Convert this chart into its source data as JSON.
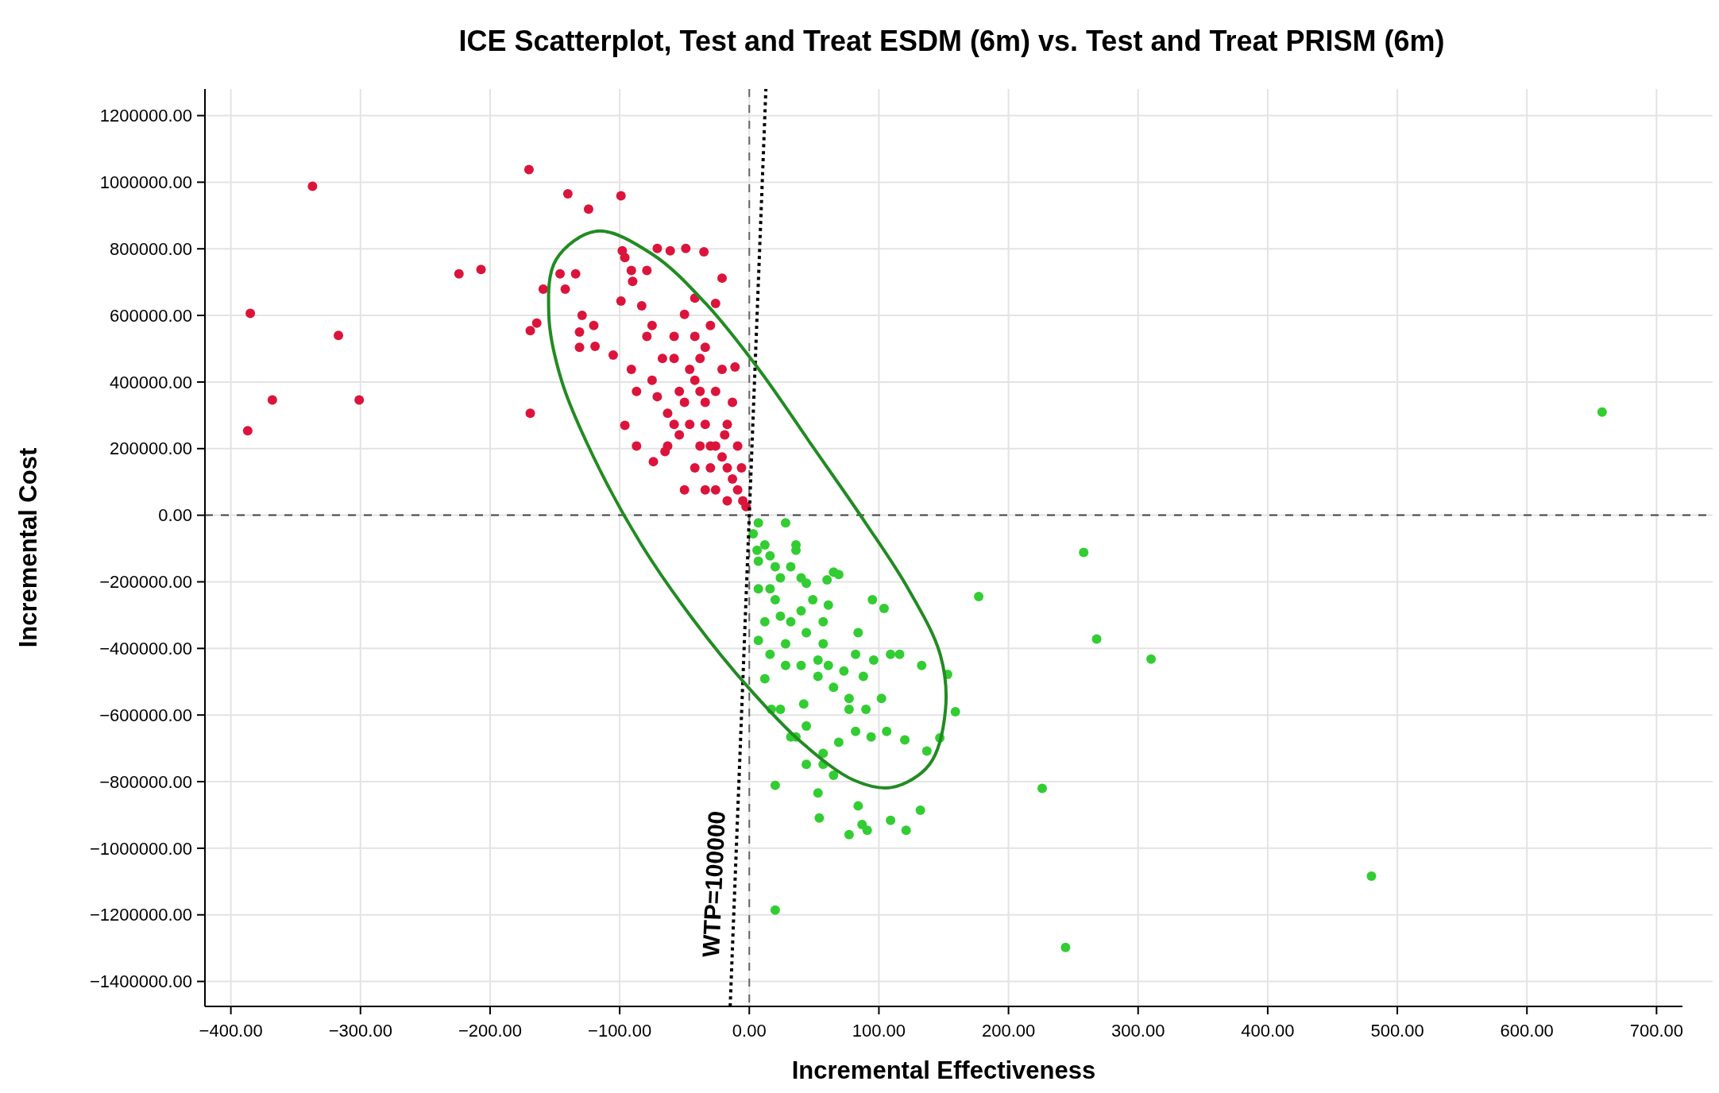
{
  "chart_data": {
    "type": "scatter",
    "title": "ICE Scatterplot, Test and Treat ESDM (6m) vs. Test and Treat PRISM (6m)",
    "xlabel": "Incremental Effectiveness",
    "ylabel": "Incremental Cost",
    "xlim": [
      -420,
      720
    ],
    "ylim": [
      -1475000,
      1280000
    ],
    "xticks": [
      {
        "value": -400,
        "label": "−400.00"
      },
      {
        "value": -300,
        "label": "−300.00"
      },
      {
        "value": -200,
        "label": "−200.00"
      },
      {
        "value": -100,
        "label": "−100.00"
      },
      {
        "value": 0,
        "label": "0.00"
      },
      {
        "value": 100,
        "label": "100.00"
      },
      {
        "value": 200,
        "label": "200.00"
      },
      {
        "value": 300,
        "label": "300.00"
      },
      {
        "value": 400,
        "label": "400.00"
      },
      {
        "value": 500,
        "label": "500.00"
      },
      {
        "value": 600,
        "label": "600.00"
      },
      {
        "value": 700,
        "label": "700.00"
      }
    ],
    "yticks": [
      {
        "value": -1400000,
        "label": "−1400000.00"
      },
      {
        "value": -1200000,
        "label": "−1200000.00"
      },
      {
        "value": -1000000,
        "label": "−1000000.00"
      },
      {
        "value": -800000,
        "label": "−800000.00"
      },
      {
        "value": -600000,
        "label": "−600000.00"
      },
      {
        "value": -400000,
        "label": "−400000.00"
      },
      {
        "value": -200000,
        "label": "−200000.00"
      },
      {
        "value": 0,
        "label": "0.00"
      },
      {
        "value": 200000,
        "label": "200000.00"
      },
      {
        "value": 400000,
        "label": "400000.00"
      },
      {
        "value": 600000,
        "label": "600000.00"
      },
      {
        "value": 800000,
        "label": "800000.00"
      },
      {
        "value": 1000000,
        "label": "1000000.00"
      },
      {
        "value": 1200000,
        "label": "1200000.00"
      }
    ],
    "grid": true,
    "marker": "circle",
    "ref_lines": [
      {
        "axis": "y",
        "value": 0,
        "color": "#444444",
        "line_style": "dashed"
      },
      {
        "axis": "x",
        "value": 0,
        "color": "#666666",
        "line_style": "dashed"
      }
    ],
    "annotations": [
      "WTP=100000"
    ],
    "series": [
      {
        "color": "#dc143c",
        "x": [
          -337,
          -385,
          -317,
          -368,
          -301,
          -387,
          -170,
          -140,
          -124,
          -99,
          -224,
          -207,
          -169,
          -164,
          -169,
          -159,
          -146,
          -134,
          -142,
          -129,
          -120,
          -131,
          -131,
          -119,
          -105,
          -99,
          -96,
          -98,
          -91,
          -79,
          -71,
          -61,
          -49,
          -35,
          -21,
          -90,
          -83,
          -96,
          -87,
          -74,
          -65,
          -91,
          -87,
          -79,
          -75,
          -67,
          -58,
          -50,
          -42,
          -30,
          -26,
          -46,
          -54,
          -63,
          -38,
          -34,
          -26,
          -17,
          -9,
          -5,
          -13,
          -21,
          -11,
          -42,
          -34,
          -50,
          -26,
          -17,
          -2.5,
          -58,
          -71,
          -42,
          -34,
          -19,
          -30,
          -38,
          -46,
          -54,
          -63,
          -75,
          -9,
          -6,
          -34,
          -26,
          -42,
          -17,
          -30,
          -21,
          -13,
          -50,
          -58,
          -38
        ],
        "values": [
          988000,
          606000,
          540000,
          346000,
          346000,
          254000,
          1038000,
          965000,
          919000,
          959000,
          725000,
          738000,
          554000,
          577000,
          306000,
          679000,
          725000,
          725000,
          679000,
          600000,
          570000,
          504000,
          550000,
          507000,
          481000,
          643000,
          774000,
          794000,
          735000,
          735000,
          801000,
          794000,
          801000,
          791000,
          712000,
          702000,
          629000,
          270000,
          208000,
          161000,
          191000,
          438000,
          372000,
          537000,
          570000,
          471000,
          537000,
          603000,
          652000,
          570000,
          636000,
          438000,
          372000,
          306000,
          372000,
          273000,
          208000,
          142000,
          76000,
          43000,
          339000,
          438000,
          445000,
          142000,
          76000,
          76000,
          76000,
          43000,
          26000,
          471000,
          356000,
          537000,
          504000,
          241000,
          142000,
          208000,
          273000,
          241000,
          208000,
          405000,
          208000,
          142000,
          339000,
          372000,
          405000,
          273000,
          208000,
          175000,
          109000,
          339000,
          273000,
          471000
        ]
      },
      {
        "color": "#32cd32",
        "x": [
          658,
          258,
          177,
          268,
          310,
          226,
          480,
          244,
          20,
          20,
          54,
          77,
          87,
          91,
          109,
          121,
          132,
          53,
          84,
          120,
          137,
          147,
          159,
          153,
          133,
          109,
          116,
          104,
          95,
          84,
          69,
          65,
          60,
          40,
          36,
          7,
          12,
          16,
          24,
          7,
          20,
          32,
          44,
          57,
          12,
          7,
          16,
          28,
          40,
          53,
          65,
          77,
          90,
          102,
          106,
          94,
          82,
          69,
          57,
          44,
          36,
          24,
          17,
          12,
          42,
          65,
          57,
          77,
          88,
          96,
          28,
          40,
          49,
          57,
          32,
          20,
          3,
          28,
          36,
          53,
          61,
          73,
          32,
          44,
          82,
          61,
          44,
          24,
          16,
          7,
          6
        ],
        "values": [
          310000,
          -112000,
          -244000,
          -372000,
          -432000,
          -820000,
          -1084000,
          -1298000,
          -1186000,
          -811000,
          -909000,
          -959000,
          -929000,
          -946000,
          -916000,
          -946000,
          -886000,
          -834000,
          -873000,
          -675000,
          -708000,
          -669000,
          -590000,
          -478000,
          -451000,
          -418000,
          -418000,
          -280000,
          -254000,
          -353000,
          -178000,
          -171000,
          -194000,
          -188000,
          -105000,
          -23000,
          -89000,
          -122000,
          -188000,
          -221000,
          -254000,
          -320000,
          -353000,
          -386000,
          -320000,
          -376000,
          -418000,
          -451000,
          -451000,
          -484000,
          -517000,
          -550000,
          -583000,
          -550000,
          -649000,
          -666000,
          -649000,
          -682000,
          -715000,
          -748000,
          -666000,
          -583000,
          -583000,
          -491000,
          -567000,
          -781000,
          -748000,
          -583000,
          -484000,
          -435000,
          -386000,
          -287000,
          -254000,
          -320000,
          -155000,
          -155000,
          -56000,
          -23000,
          -89000,
          -435000,
          -451000,
          -468000,
          -666000,
          -633000,
          -418000,
          -270000,
          -204000,
          -303000,
          -221000,
          -138000,
          -105000
        ]
      },
      {
        "type": "line",
        "color": "#000000",
        "line_style": "dotted",
        "marker": "none",
        "x": [
          -14.75,
          12.8
        ],
        "values": [
          -1475000,
          1280000
        ]
      }
    ]
  }
}
